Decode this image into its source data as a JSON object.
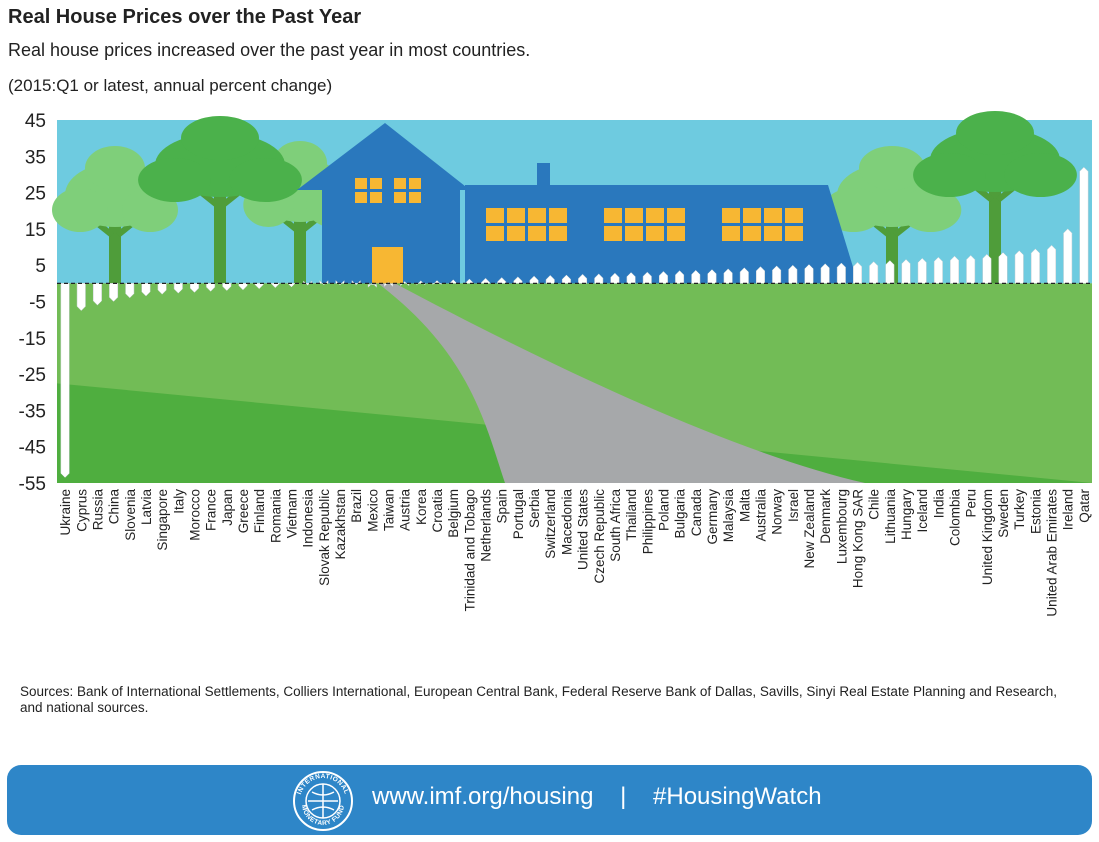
{
  "title": "Real House Prices over the Past Year",
  "subtitle": "Real house prices increased over the past year in most countries.",
  "units": "(2015:Q1 or latest, annual percent change)",
  "sources": "Sources: Bank of International Settlements, Colliers International, European Central Bank, Federal Reserve Bank of Dallas, Savills, Sinyi Real Estate Planning and Research, and national sources.",
  "footer": {
    "url": "www.imf.org/housing",
    "separator": "|",
    "hashtag": "#HousingWatch",
    "seal_top": "INTERNATIONAL",
    "seal_bottom": "MONETARY FUND"
  },
  "colors": {
    "sky": "#6ecbe0",
    "grass": "#4fae3f",
    "grass_light": "#8fc86a",
    "path": "#a6a8aa",
    "house": "#2a78bd",
    "window": "#f7b733",
    "tree": "#4bb14b",
    "trunk": "#4f9d3a",
    "bar": "#ffffff",
    "footer": "#2e86c8"
  },
  "chart_data": {
    "type": "bar",
    "ylim": [
      -55,
      45
    ],
    "yticks": [
      45,
      35,
      25,
      15,
      5,
      -5,
      -15,
      -25,
      -35,
      -45,
      -55
    ],
    "categories": [
      "Ukraine",
      "Cyprus",
      "Russia",
      "China",
      "Slovenia",
      "Latvia",
      "Singapore",
      "Italy",
      "Morocco",
      "France",
      "Japan",
      "Greece",
      "Finland",
      "Romania",
      "Vietnam",
      "Indonesia",
      "Slovak Republic",
      "Kazakhstan",
      "Brazil",
      "Mexico",
      "Taiwan",
      "Austria",
      "Korea",
      "Croatia",
      "Belgium",
      "Trinidad and Tobago",
      "Netherlands",
      "Spain",
      "Portugal",
      "Serbia",
      "Switzerland",
      "Macedonia",
      "United States",
      "Czech Republic",
      "South Africa",
      "Thailand",
      "Philippines",
      "Poland",
      "Bulgaria",
      "Canada",
      "Germany",
      "Malaysia",
      "Malta",
      "Australia",
      "Norway",
      "Israel",
      "New Zealand",
      "Denmark",
      "Luxembourg",
      "Hong Kong SAR",
      "Chile",
      "Lithuania",
      "Hungary",
      "Iceland",
      "India",
      "Colombia",
      "Peru",
      "United Kingdom",
      "Sweden",
      "Turkey",
      "Estonia",
      "United Arab Emirates",
      "Ireland",
      "Qatar"
    ],
    "values": [
      -53.5,
      -7.5,
      -6.0,
      -5.0,
      -4.0,
      -3.5,
      -3.0,
      -2.7,
      -2.5,
      -2.2,
      -2.0,
      -1.8,
      -1.5,
      -1.2,
      -1.0,
      -0.5,
      -0.3,
      -0.2,
      -0.1,
      0.1,
      0.3,
      0.5,
      0.7,
      0.8,
      1.0,
      1.2,
      1.4,
      1.6,
      1.8,
      2.0,
      2.2,
      2.3,
      2.5,
      2.6,
      2.8,
      3.0,
      3.1,
      3.3,
      3.5,
      3.6,
      3.8,
      4.0,
      4.3,
      4.6,
      4.8,
      5.0,
      5.2,
      5.4,
      5.6,
      5.8,
      6.0,
      6.3,
      6.6,
      6.9,
      7.2,
      7.5,
      7.7,
      8.0,
      8.5,
      9.0,
      9.5,
      10.5,
      15.0,
      32.0
    ]
  }
}
